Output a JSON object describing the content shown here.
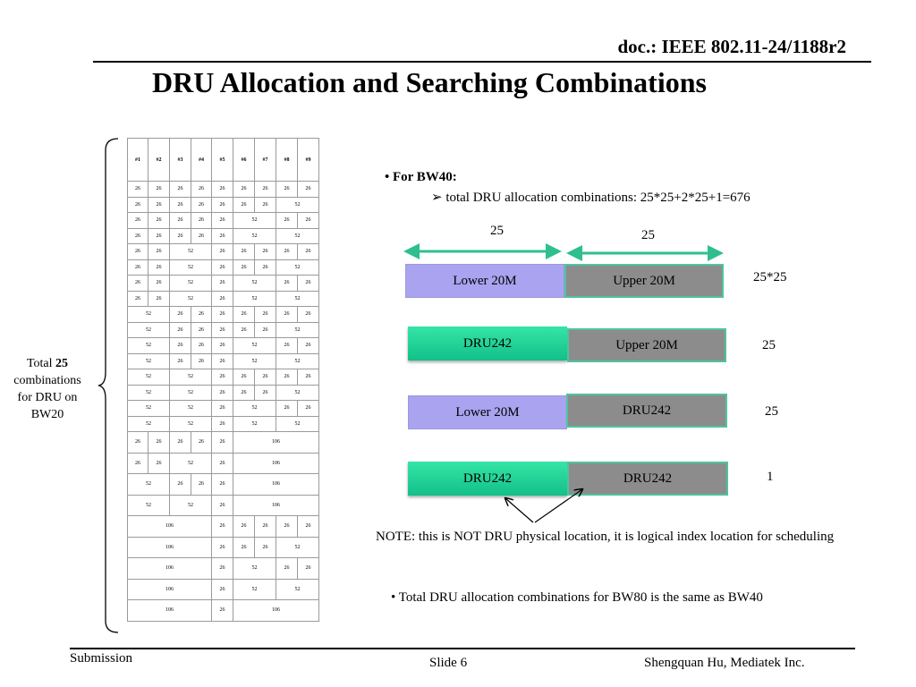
{
  "header": {
    "doc_id": "doc.: IEEE 802.11-24/1188r2",
    "title": "DRU Allocation and Searching Combinations"
  },
  "footer": {
    "left": "Submission",
    "center": "Slide 6",
    "right": "Shengquan Hu, Mediatek Inc."
  },
  "table": {
    "headers": [
      "#1",
      "#2",
      "#3",
      "#4",
      "#5",
      "#6",
      "#7",
      "#8",
      "#9"
    ],
    "rows": [
      [
        [
          "26",
          1
        ],
        [
          "26",
          1
        ],
        [
          "26",
          1
        ],
        [
          "26",
          1
        ],
        [
          "26",
          1
        ],
        [
          "26",
          1
        ],
        [
          "26",
          1
        ],
        [
          "26",
          1
        ],
        [
          "26",
          1
        ]
      ],
      [
        [
          "26",
          1
        ],
        [
          "26",
          1
        ],
        [
          "26",
          1
        ],
        [
          "26",
          1
        ],
        [
          "26",
          1
        ],
        [
          "26",
          1
        ],
        [
          "26",
          1
        ],
        [
          "52",
          2
        ]
      ],
      [
        [
          "26",
          1
        ],
        [
          "26",
          1
        ],
        [
          "26",
          1
        ],
        [
          "26",
          1
        ],
        [
          "26",
          1
        ],
        [
          "52",
          2
        ],
        [
          "26",
          1
        ],
        [
          "26",
          1
        ]
      ],
      [
        [
          "26",
          1
        ],
        [
          "26",
          1
        ],
        [
          "26",
          1
        ],
        [
          "26",
          1
        ],
        [
          "26",
          1
        ],
        [
          "52",
          2
        ],
        [
          "52",
          2
        ]
      ],
      [
        [
          "26",
          1
        ],
        [
          "26",
          1
        ],
        [
          "52",
          2
        ],
        [
          "26",
          1
        ],
        [
          "26",
          1
        ],
        [
          "26",
          1
        ],
        [
          "26",
          1
        ],
        [
          "26",
          1
        ]
      ],
      [
        [
          "26",
          1
        ],
        [
          "26",
          1
        ],
        [
          "52",
          2
        ],
        [
          "26",
          1
        ],
        [
          "26",
          1
        ],
        [
          "26",
          1
        ],
        [
          "52",
          2
        ]
      ],
      [
        [
          "26",
          1
        ],
        [
          "26",
          1
        ],
        [
          "52",
          2
        ],
        [
          "26",
          1
        ],
        [
          "52",
          2
        ],
        [
          "26",
          1
        ],
        [
          "26",
          1
        ]
      ],
      [
        [
          "26",
          1
        ],
        [
          "26",
          1
        ],
        [
          "52",
          2
        ],
        [
          "26",
          1
        ],
        [
          "52",
          2
        ],
        [
          "52",
          2
        ]
      ],
      [
        [
          "52",
          2
        ],
        [
          "26",
          1
        ],
        [
          "26",
          1
        ],
        [
          "26",
          1
        ],
        [
          "26",
          1
        ],
        [
          "26",
          1
        ],
        [
          "26",
          1
        ],
        [
          "26",
          1
        ]
      ],
      [
        [
          "52",
          2
        ],
        [
          "26",
          1
        ],
        [
          "26",
          1
        ],
        [
          "26",
          1
        ],
        [
          "26",
          1
        ],
        [
          "26",
          1
        ],
        [
          "52",
          2
        ]
      ],
      [
        [
          "52",
          2
        ],
        [
          "26",
          1
        ],
        [
          "26",
          1
        ],
        [
          "26",
          1
        ],
        [
          "52",
          2
        ],
        [
          "26",
          1
        ],
        [
          "26",
          1
        ]
      ],
      [
        [
          "52",
          2
        ],
        [
          "26",
          1
        ],
        [
          "26",
          1
        ],
        [
          "26",
          1
        ],
        [
          "52",
          2
        ],
        [
          "52",
          2
        ]
      ],
      [
        [
          "52",
          2
        ],
        [
          "52",
          2
        ],
        [
          "26",
          1
        ],
        [
          "26",
          1
        ],
        [
          "26",
          1
        ],
        [
          "26",
          1
        ],
        [
          "26",
          1
        ]
      ],
      [
        [
          "52",
          2
        ],
        [
          "52",
          2
        ],
        [
          "26",
          1
        ],
        [
          "26",
          1
        ],
        [
          "26",
          1
        ],
        [
          "52",
          2
        ]
      ],
      [
        [
          "52",
          2
        ],
        [
          "52",
          2
        ],
        [
          "26",
          1
        ],
        [
          "52",
          2
        ],
        [
          "26",
          1
        ],
        [
          "26",
          1
        ]
      ],
      [
        [
          "52",
          2
        ],
        [
          "52",
          2
        ],
        [
          "26",
          1
        ],
        [
          "52",
          2
        ],
        [
          "52",
          2
        ]
      ],
      [
        [
          "26",
          1
        ],
        [
          "26",
          1
        ],
        [
          "26",
          1
        ],
        [
          "26",
          1
        ],
        [
          "26",
          1
        ],
        [
          "106",
          4
        ]
      ],
      [
        [
          "26",
          1
        ],
        [
          "26",
          1
        ],
        [
          "52",
          2
        ],
        [
          "26",
          1
        ],
        [
          "106",
          4
        ]
      ],
      [
        [
          "52",
          2
        ],
        [
          "26",
          1
        ],
        [
          "26",
          1
        ],
        [
          "26",
          1
        ],
        [
          "106",
          4
        ]
      ],
      [
        [
          "52",
          2
        ],
        [
          "52",
          2
        ],
        [
          "26",
          1
        ],
        [
          "106",
          4
        ]
      ],
      [
        [
          "106",
          4
        ],
        [
          "26",
          1
        ],
        [
          "26",
          1
        ],
        [
          "26",
          1
        ],
        [
          "26",
          1
        ],
        [
          "26",
          1
        ]
      ],
      [
        [
          "106",
          4
        ],
        [
          "26",
          1
        ],
        [
          "26",
          1
        ],
        [
          "26",
          1
        ],
        [
          "52",
          2
        ]
      ],
      [
        [
          "106",
          4
        ],
        [
          "26",
          1
        ],
        [
          "52",
          2
        ],
        [
          "26",
          1
        ],
        [
          "26",
          1
        ]
      ],
      [
        [
          "106",
          4
        ],
        [
          "26",
          1
        ],
        [
          "52",
          2
        ],
        [
          "52",
          2
        ]
      ],
      [
        [
          "106",
          4
        ],
        [
          "26",
          1
        ],
        [
          "106",
          4
        ]
      ]
    ]
  },
  "brace_label": {
    "prefix": "Total ",
    "count": "25",
    "line2": "combinations",
    "line3": "for DRU on",
    "line4": "BW20"
  },
  "bw40": {
    "bullet": "• For BW40:",
    "sub": "➢ total DRU allocation combinations: 25*25+2*25+1=676",
    "width_left": "25",
    "width_right": "25",
    "rows": [
      {
        "left": "Lower 20M",
        "right": "Upper 20M",
        "count": "25*25"
      },
      {
        "left": "DRU242",
        "right": "Upper 20M",
        "count": "25"
      },
      {
        "left": "Lower 20M",
        "right": "DRU242",
        "count": "25"
      },
      {
        "left": "DRU242",
        "right": "DRU242",
        "count": "1"
      }
    ]
  },
  "note": "NOTE: this is NOT DRU physical location, it is logical index location for scheduling",
  "bw80": "• Total DRU allocation combinations for BW80 is the same as BW40",
  "colors": {
    "lower": "#a9a3f0",
    "upper": "#8c8c8c",
    "dru": "#1fd497",
    "arrow": "#2fbf8f"
  }
}
